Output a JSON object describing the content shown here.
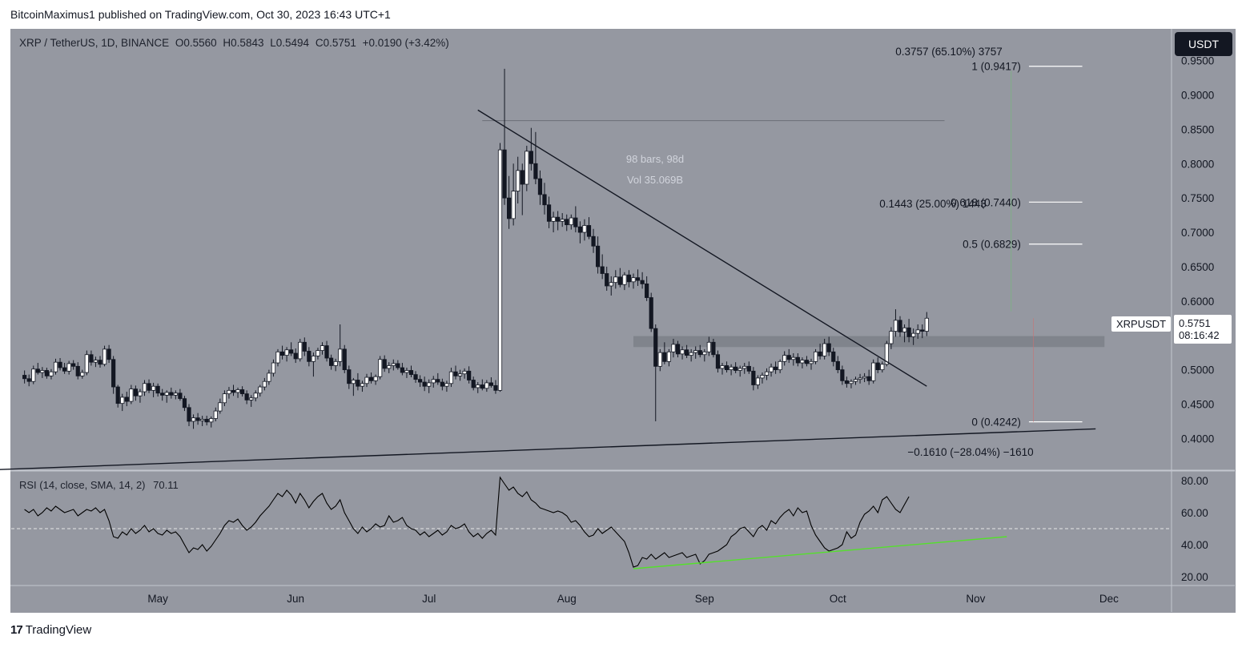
{
  "publisher_line": "BitcoinMaximus1 published on TradingView.com, Oct 30, 2023 16:43 UTC+1",
  "legend": {
    "symbol": "XRP / TetherUS, 1D, BINANCE",
    "o_label": "O",
    "o": "0.5560",
    "h_label": "H",
    "h": "0.5843",
    "l_label": "L",
    "l": "0.5494",
    "c_label": "C",
    "c": "0.5751",
    "change": "+0.0190 (+3.42%)"
  },
  "currency": "USDT",
  "last_price": {
    "symbol": "XRPUSDT",
    "price": "0.5751",
    "countdown": "08:16:42"
  },
  "rsi_legend": {
    "label": "RSI (14, close, SMA, 14, 2)",
    "value": "70.11"
  },
  "footer": {
    "logo": "17",
    "brand": "TradingView"
  },
  "colors": {
    "background": "#9598a1",
    "bull": "#ffffff",
    "bear": "#131722",
    "rsi_line": "#000000",
    "rsi_trend": "#55e02c"
  },
  "chart_data": {
    "type": "candlestick",
    "price_axis": {
      "ticks": [
        "0.9500",
        "0.9000",
        "0.8500",
        "0.8000",
        "0.7500",
        "0.7000",
        "0.6500",
        "0.6000",
        "0.5500",
        "0.5000",
        "0.4500",
        "0.4000"
      ],
      "range": [
        0.355,
        0.995
      ]
    },
    "time_axis": [
      "May",
      "Jun",
      "Jul",
      "Aug",
      "Sep",
      "Oct",
      "Nov",
      "Dec"
    ],
    "rsi_axis": [
      "80.00",
      "60.00",
      "40.00",
      "20.00"
    ],
    "rsi_range": [
      15,
      85
    ],
    "rsi_midline": 50,
    "candles_start": "2023-04-01",
    "candles": [
      [
        0.492,
        0.499,
        0.48,
        0.487
      ],
      [
        0.487,
        0.493,
        0.476,
        0.483
      ],
      [
        0.483,
        0.506,
        0.479,
        0.501
      ],
      [
        0.501,
        0.51,
        0.493,
        0.496
      ],
      [
        0.496,
        0.504,
        0.488,
        0.499
      ],
      [
        0.499,
        0.503,
        0.487,
        0.491
      ],
      [
        0.491,
        0.501,
        0.486,
        0.497
      ],
      [
        0.497,
        0.516,
        0.493,
        0.511
      ],
      [
        0.511,
        0.517,
        0.499,
        0.503
      ],
      [
        0.503,
        0.51,
        0.494,
        0.498
      ],
      [
        0.498,
        0.513,
        0.493,
        0.509
      ],
      [
        0.509,
        0.514,
        0.5,
        0.505
      ],
      [
        0.505,
        0.511,
        0.486,
        0.491
      ],
      [
        0.491,
        0.5,
        0.487,
        0.496
      ],
      [
        0.496,
        0.528,
        0.492,
        0.522
      ],
      [
        0.522,
        0.528,
        0.506,
        0.511
      ],
      [
        0.511,
        0.519,
        0.504,
        0.514
      ],
      [
        0.514,
        0.52,
        0.503,
        0.508
      ],
      [
        0.508,
        0.535,
        0.505,
        0.53
      ],
      [
        0.53,
        0.536,
        0.51,
        0.515
      ],
      [
        0.515,
        0.52,
        0.465,
        0.475
      ],
      [
        0.475,
        0.478,
        0.445,
        0.451
      ],
      [
        0.451,
        0.465,
        0.44,
        0.46
      ],
      [
        0.46,
        0.468,
        0.447,
        0.454
      ],
      [
        0.454,
        0.478,
        0.45,
        0.472
      ],
      [
        0.472,
        0.477,
        0.455,
        0.462
      ],
      [
        0.462,
        0.472,
        0.452,
        0.468
      ],
      [
        0.468,
        0.485,
        0.462,
        0.48
      ],
      [
        0.48,
        0.486,
        0.466,
        0.47
      ],
      [
        0.47,
        0.481,
        0.46,
        0.476
      ],
      [
        0.476,
        0.48,
        0.461,
        0.466
      ],
      [
        0.466,
        0.472,
        0.455,
        0.463
      ],
      [
        0.463,
        0.47,
        0.452,
        0.467
      ],
      [
        0.467,
        0.474,
        0.458,
        0.463
      ],
      [
        0.463,
        0.47,
        0.457,
        0.466
      ],
      [
        0.466,
        0.472,
        0.455,
        0.458
      ],
      [
        0.458,
        0.462,
        0.44,
        0.445
      ],
      [
        0.445,
        0.45,
        0.418,
        0.425
      ],
      [
        0.425,
        0.435,
        0.414,
        0.43
      ],
      [
        0.43,
        0.437,
        0.42,
        0.426
      ],
      [
        0.426,
        0.433,
        0.418,
        0.428
      ],
      [
        0.428,
        0.433,
        0.419,
        0.424
      ],
      [
        0.424,
        0.432,
        0.416,
        0.429
      ],
      [
        0.429,
        0.445,
        0.425,
        0.44
      ],
      [
        0.44,
        0.458,
        0.436,
        0.452
      ],
      [
        0.452,
        0.47,
        0.447,
        0.465
      ],
      [
        0.465,
        0.475,
        0.458,
        0.47
      ],
      [
        0.47,
        0.478,
        0.462,
        0.467
      ],
      [
        0.467,
        0.474,
        0.459,
        0.471
      ],
      [
        0.471,
        0.476,
        0.461,
        0.465
      ],
      [
        0.465,
        0.47,
        0.45,
        0.456
      ],
      [
        0.456,
        0.463,
        0.446,
        0.459
      ],
      [
        0.459,
        0.47,
        0.454,
        0.466
      ],
      [
        0.466,
        0.478,
        0.461,
        0.475
      ],
      [
        0.475,
        0.488,
        0.47,
        0.483
      ],
      [
        0.483,
        0.5,
        0.478,
        0.495
      ],
      [
        0.495,
        0.515,
        0.49,
        0.51
      ],
      [
        0.51,
        0.53,
        0.505,
        0.526
      ],
      [
        0.526,
        0.535,
        0.515,
        0.521
      ],
      [
        0.521,
        0.533,
        0.512,
        0.529
      ],
      [
        0.529,
        0.54,
        0.52,
        0.524
      ],
      [
        0.524,
        0.531,
        0.51,
        0.516
      ],
      [
        0.516,
        0.545,
        0.512,
        0.54
      ],
      [
        0.54,
        0.547,
        0.52,
        0.527
      ],
      [
        0.527,
        0.533,
        0.505,
        0.512
      ],
      [
        0.512,
        0.525,
        0.49,
        0.52
      ],
      [
        0.52,
        0.532,
        0.515,
        0.528
      ],
      [
        0.528,
        0.54,
        0.522,
        0.535
      ],
      [
        0.535,
        0.542,
        0.512,
        0.517
      ],
      [
        0.517,
        0.522,
        0.5,
        0.506
      ],
      [
        0.506,
        0.516,
        0.498,
        0.512
      ],
      [
        0.512,
        0.566,
        0.505,
        0.53
      ],
      [
        0.53,
        0.536,
        0.495,
        0.5
      ],
      [
        0.5,
        0.506,
        0.472,
        0.48
      ],
      [
        0.48,
        0.488,
        0.462,
        0.485
      ],
      [
        0.485,
        0.495,
        0.47,
        0.476
      ],
      [
        0.476,
        0.484,
        0.468,
        0.48
      ],
      [
        0.48,
        0.494,
        0.475,
        0.489
      ],
      [
        0.489,
        0.496,
        0.48,
        0.484
      ],
      [
        0.484,
        0.493,
        0.478,
        0.49
      ],
      [
        0.49,
        0.52,
        0.486,
        0.515
      ],
      [
        0.515,
        0.521,
        0.497,
        0.502
      ],
      [
        0.502,
        0.511,
        0.495,
        0.506
      ],
      [
        0.506,
        0.515,
        0.499,
        0.509
      ],
      [
        0.509,
        0.514,
        0.5,
        0.503
      ],
      [
        0.503,
        0.51,
        0.492,
        0.496
      ],
      [
        0.496,
        0.503,
        0.488,
        0.499
      ],
      [
        0.499,
        0.506,
        0.489,
        0.493
      ],
      [
        0.493,
        0.498,
        0.481,
        0.486
      ],
      [
        0.486,
        0.492,
        0.475,
        0.482
      ],
      [
        0.482,
        0.49,
        0.469,
        0.476
      ],
      [
        0.476,
        0.486,
        0.466,
        0.481
      ],
      [
        0.481,
        0.491,
        0.474,
        0.486
      ],
      [
        0.486,
        0.495,
        0.478,
        0.482
      ],
      [
        0.482,
        0.487,
        0.47,
        0.476
      ],
      [
        0.476,
        0.484,
        0.468,
        0.48
      ],
      [
        0.48,
        0.503,
        0.475,
        0.497
      ],
      [
        0.497,
        0.506,
        0.486,
        0.491
      ],
      [
        0.491,
        0.5,
        0.484,
        0.494
      ],
      [
        0.494,
        0.502,
        0.487,
        0.498
      ],
      [
        0.498,
        0.505,
        0.48,
        0.485
      ],
      [
        0.485,
        0.49,
        0.47,
        0.474
      ],
      [
        0.474,
        0.482,
        0.466,
        0.478
      ],
      [
        0.478,
        0.486,
        0.47,
        0.473
      ],
      [
        0.473,
        0.485,
        0.468,
        0.481
      ],
      [
        0.481,
        0.489,
        0.474,
        0.477
      ],
      [
        0.477,
        0.485,
        0.465,
        0.47
      ],
      [
        0.47,
        0.83,
        0.468,
        0.82
      ],
      [
        0.82,
        0.938,
        0.74,
        0.75
      ],
      [
        0.75,
        0.782,
        0.705,
        0.72
      ],
      [
        0.72,
        0.8,
        0.71,
        0.76
      ],
      [
        0.76,
        0.81,
        0.742,
        0.79
      ],
      [
        0.79,
        0.8,
        0.725,
        0.77
      ],
      [
        0.77,
        0.826,
        0.76,
        0.818
      ],
      [
        0.818,
        0.852,
        0.79,
        0.8
      ],
      [
        0.8,
        0.846,
        0.77,
        0.778
      ],
      [
        0.778,
        0.79,
        0.74,
        0.755
      ],
      [
        0.755,
        0.772,
        0.726,
        0.74
      ],
      [
        0.74,
        0.752,
        0.706,
        0.716
      ],
      [
        0.716,
        0.73,
        0.7,
        0.722
      ],
      [
        0.722,
        0.731,
        0.703,
        0.716
      ],
      [
        0.716,
        0.728,
        0.708,
        0.719
      ],
      [
        0.719,
        0.726,
        0.702,
        0.711
      ],
      [
        0.711,
        0.726,
        0.704,
        0.721
      ],
      [
        0.721,
        0.738,
        0.7,
        0.708
      ],
      [
        0.708,
        0.716,
        0.684,
        0.7
      ],
      [
        0.7,
        0.719,
        0.688,
        0.71
      ],
      [
        0.71,
        0.722,
        0.69,
        0.694
      ],
      [
        0.694,
        0.705,
        0.67,
        0.68
      ],
      [
        0.68,
        0.694,
        0.64,
        0.65
      ],
      [
        0.65,
        0.668,
        0.632,
        0.64
      ],
      [
        0.64,
        0.65,
        0.615,
        0.622
      ],
      [
        0.622,
        0.636,
        0.608,
        0.627
      ],
      [
        0.627,
        0.645,
        0.618,
        0.635
      ],
      [
        0.635,
        0.648,
        0.62,
        0.624
      ],
      [
        0.624,
        0.642,
        0.616,
        0.638
      ],
      [
        0.638,
        0.645,
        0.62,
        0.628
      ],
      [
        0.628,
        0.64,
        0.618,
        0.634
      ],
      [
        0.634,
        0.646,
        0.622,
        0.63
      ],
      [
        0.63,
        0.642,
        0.618,
        0.625
      ],
      [
        0.625,
        0.636,
        0.6,
        0.605
      ],
      [
        0.605,
        0.612,
        0.555,
        0.56
      ],
      [
        0.56,
        0.566,
        0.425,
        0.505
      ],
      [
        0.505,
        0.53,
        0.498,
        0.525
      ],
      [
        0.525,
        0.54,
        0.508,
        0.512
      ],
      [
        0.512,
        0.53,
        0.505,
        0.526
      ],
      [
        0.526,
        0.545,
        0.518,
        0.537
      ],
      [
        0.537,
        0.542,
        0.518,
        0.523
      ],
      [
        0.523,
        0.534,
        0.515,
        0.529
      ],
      [
        0.529,
        0.536,
        0.517,
        0.521
      ],
      [
        0.521,
        0.53,
        0.512,
        0.525
      ],
      [
        0.525,
        0.534,
        0.516,
        0.528
      ],
      [
        0.528,
        0.536,
        0.518,
        0.522
      ],
      [
        0.522,
        0.53,
        0.512,
        0.526
      ],
      [
        0.526,
        0.548,
        0.52,
        0.54
      ],
      [
        0.54,
        0.545,
        0.518,
        0.522
      ],
      [
        0.522,
        0.528,
        0.496,
        0.502
      ],
      [
        0.502,
        0.51,
        0.493,
        0.506
      ],
      [
        0.506,
        0.512,
        0.496,
        0.5
      ],
      [
        0.5,
        0.508,
        0.492,
        0.504
      ],
      [
        0.504,
        0.511,
        0.495,
        0.499
      ],
      [
        0.499,
        0.506,
        0.49,
        0.502
      ],
      [
        0.502,
        0.51,
        0.494,
        0.505
      ],
      [
        0.505,
        0.512,
        0.494,
        0.498
      ],
      [
        0.498,
        0.504,
        0.47,
        0.478
      ],
      [
        0.478,
        0.492,
        0.472,
        0.488
      ],
      [
        0.488,
        0.496,
        0.48,
        0.492
      ],
      [
        0.492,
        0.502,
        0.485,
        0.497
      ],
      [
        0.497,
        0.509,
        0.49,
        0.504
      ],
      [
        0.504,
        0.512,
        0.494,
        0.5
      ],
      [
        0.5,
        0.515,
        0.495,
        0.512
      ],
      [
        0.512,
        0.527,
        0.506,
        0.521
      ],
      [
        0.521,
        0.53,
        0.51,
        0.515
      ],
      [
        0.515,
        0.524,
        0.506,
        0.518
      ],
      [
        0.518,
        0.524,
        0.505,
        0.51
      ],
      [
        0.51,
        0.518,
        0.502,
        0.514
      ],
      [
        0.514,
        0.52,
        0.505,
        0.509
      ],
      [
        0.509,
        0.516,
        0.5,
        0.512
      ],
      [
        0.512,
        0.53,
        0.508,
        0.526
      ],
      [
        0.526,
        0.538,
        0.515,
        0.52
      ],
      [
        0.52,
        0.545,
        0.515,
        0.538
      ],
      [
        0.538,
        0.548,
        0.52,
        0.526
      ],
      [
        0.526,
        0.532,
        0.505,
        0.512
      ],
      [
        0.512,
        0.52,
        0.495,
        0.5
      ],
      [
        0.5,
        0.506,
        0.478,
        0.484
      ],
      [
        0.484,
        0.49,
        0.474,
        0.48
      ],
      [
        0.48,
        0.486,
        0.473,
        0.483
      ],
      [
        0.483,
        0.49,
        0.478,
        0.486
      ],
      [
        0.486,
        0.494,
        0.48,
        0.488
      ],
      [
        0.488,
        0.495,
        0.482,
        0.49
      ],
      [
        0.49,
        0.5,
        0.478,
        0.484
      ],
      [
        0.484,
        0.515,
        0.48,
        0.51
      ],
      [
        0.51,
        0.518,
        0.495,
        0.5
      ],
      [
        0.5,
        0.512,
        0.496,
        0.508
      ],
      [
        0.508,
        0.542,
        0.505,
        0.538
      ],
      [
        0.538,
        0.562,
        0.53,
        0.556
      ],
      [
        0.556,
        0.588,
        0.548,
        0.572
      ],
      [
        0.572,
        0.578,
        0.548,
        0.555
      ],
      [
        0.555,
        0.566,
        0.54,
        0.561
      ],
      [
        0.561,
        0.574,
        0.54,
        0.548
      ],
      [
        0.548,
        0.56,
        0.536,
        0.553
      ],
      [
        0.553,
        0.566,
        0.545,
        0.558
      ],
      [
        0.558,
        0.566,
        0.546,
        0.556
      ],
      [
        0.556,
        0.584,
        0.549,
        0.575
      ]
    ],
    "rsi": [
      62,
      60,
      62,
      58,
      60,
      63,
      61,
      64,
      62,
      60,
      61,
      62,
      58,
      60,
      62,
      61,
      63,
      60,
      62,
      55,
      45,
      44,
      48,
      46,
      50,
      47,
      49,
      52,
      48,
      50,
      47,
      46,
      49,
      47,
      48,
      45,
      40,
      35,
      38,
      37,
      40,
      36,
      39,
      43,
      47,
      52,
      55,
      54,
      56,
      52,
      49,
      51,
      54,
      58,
      61,
      64,
      68,
      72,
      70,
      74,
      71,
      66,
      72,
      68,
      63,
      67,
      70,
      72,
      66,
      62,
      64,
      68,
      60,
      55,
      50,
      47,
      51,
      48,
      50,
      53,
      51,
      52,
      58,
      54,
      55,
      57,
      52,
      50,
      49,
      46,
      48,
      45,
      47,
      49,
      46,
      48,
      52,
      50,
      51,
      53,
      48,
      45,
      47,
      44,
      47,
      49,
      46,
      82,
      78,
      74,
      76,
      72,
      70,
      73,
      68,
      66,
      63,
      62,
      61,
      60,
      61,
      60,
      58,
      54,
      55,
      52,
      48,
      45,
      46,
      50,
      47,
      49,
      51,
      48,
      45,
      42,
      35,
      26,
      27,
      32,
      31,
      34,
      31,
      33,
      35,
      32,
      33,
      34,
      35,
      32,
      33,
      34,
      28,
      30,
      34,
      35,
      36,
      38,
      40,
      45,
      47,
      50,
      51,
      48,
      45,
      50,
      52,
      49,
      55,
      53,
      57,
      60,
      62,
      58,
      63,
      60,
      61,
      52,
      46,
      42,
      38,
      36,
      37,
      38,
      40,
      48,
      44,
      46,
      54,
      59,
      61,
      64,
      60,
      68,
      70,
      66,
      62,
      60,
      65,
      70
    ],
    "rsi_trendline": [
      [
        "2023-08-16",
        25
      ],
      [
        "2023-11-08",
        45
      ]
    ],
    "descending_trendline": [
      [
        "2023-07-12",
        0.878
      ],
      [
        "2023-10-21",
        0.476
      ]
    ],
    "ascending_trendline": [
      [
        "2023-03-23",
        0.354
      ],
      [
        "2023-11-28",
        0.414
      ]
    ],
    "support_zone": [
      0.533,
      0.549
    ],
    "measure_line_level": 0.8625,
    "measure_tool": {
      "bars": "98 bars, 98d",
      "vol": "Vol 35.069B"
    },
    "fib_levels": [
      {
        "label": "1 (0.9417)",
        "value": 0.9417
      },
      {
        "label": "0.618 (0.7440)",
        "value": 0.744
      },
      {
        "label": "0.5 (0.6829)",
        "value": 0.6829
      },
      {
        "label": "0 (0.4242)",
        "value": 0.4242
      }
    ],
    "range_labels": [
      {
        "text": "0.3757 (65.10%) 3757",
        "value": 0.3757
      },
      {
        "text": "0.1443 (25.00%) 1443",
        "value": 0.1443
      },
      {
        "text": "−0.1610 (−28.04%) −1610",
        "value": -0.161
      }
    ]
  }
}
